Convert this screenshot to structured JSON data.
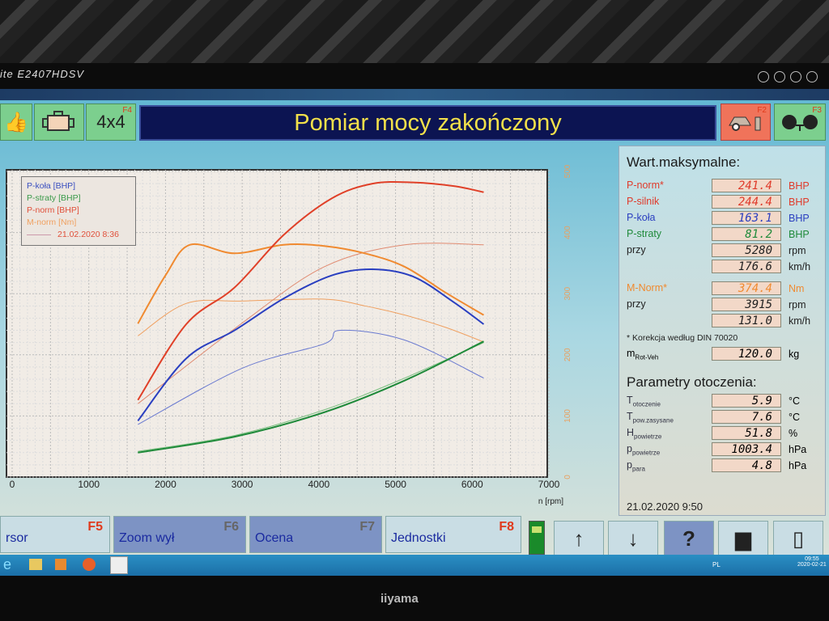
{
  "monitor": {
    "model": "ite E2407HDSV",
    "brand": "iiyama"
  },
  "toolbar": {
    "left_buttons": [
      {
        "icon": "thumbs-up-icon"
      },
      {
        "icon": "engine-icon"
      },
      {
        "label": "4x4",
        "fkey": "F4"
      }
    ],
    "title": "Pomiar mocy zakończony",
    "right_buttons": [
      {
        "icon": "car-lift-icon",
        "fkey": "F2",
        "color": "#f0735a"
      },
      {
        "icon": "axle-icon",
        "fkey": "F3",
        "color": "#7ccf8e"
      }
    ]
  },
  "chart_data": {
    "type": "line",
    "x_label": "n [rpm]",
    "x_ticks": [
      "0",
      "1000",
      "2000",
      "3000",
      "4000",
      "5000",
      "6000",
      "7000"
    ],
    "xlim": [
      0,
      7000
    ],
    "y_right_ticks": [
      "0",
      "100",
      "200",
      "300",
      "400",
      "500"
    ],
    "ylim_nm": [
      0,
      500
    ],
    "ylim_bhp": [
      0,
      250
    ],
    "grid": true,
    "legend_placement": "top-left",
    "legend": [
      {
        "label": "P-koła [BHP]",
        "color": "#3a4fc0"
      },
      {
        "label": "P-straty [BHP]",
        "color": "#3a9a4a"
      },
      {
        "label": "P-norm [BHP]",
        "color": "#e0503a"
      },
      {
        "label": "M-norm [Nm]",
        "color": "#f0a060"
      }
    ],
    "reference_run": "21.02.2020 8:36",
    "series": [
      {
        "name": "M-norm [Nm]",
        "unit": "Nm",
        "color": "#f08a30",
        "width": 2,
        "x": [
          1640,
          2000,
          2320,
          2900,
          3540,
          4070,
          4600,
          5120,
          5650,
          6150
        ],
        "values": [
          251,
          330,
          380,
          366,
          380,
          378,
          366,
          344,
          302,
          265
        ]
      },
      {
        "name": "P-norm [BHP]",
        "unit": "BHP",
        "color": "#e04028",
        "width": 2,
        "x": [
          1640,
          2270,
          2900,
          3540,
          4170,
          4700,
          5230,
          5760,
          6150
        ],
        "values": [
          63,
          125,
          155,
          198,
          228,
          240,
          241,
          238,
          233
        ]
      },
      {
        "name": "P-koła [BHP]",
        "unit": "BHP",
        "color": "#2a3fc0",
        "width": 2,
        "x": [
          1640,
          2270,
          2900,
          3540,
          4170,
          4700,
          5230,
          5760,
          6150
        ],
        "values": [
          46,
          97,
          120,
          146,
          165,
          170,
          164,
          143,
          125
        ]
      },
      {
        "name": "P-straty [BHP]",
        "unit": "BHP",
        "color": "#1f8a3a",
        "width": 2,
        "x": [
          1640,
          2900,
          4070,
          5120,
          6150
        ],
        "values": [
          20,
          33,
          53,
          79,
          111
        ]
      },
      {
        "name": "M-norm [Nm] 21.02.2020 8:36",
        "unit": "Nm",
        "color": "#f0a060",
        "width": 1,
        "x": [
          1640,
          2270,
          3000,
          4070,
          4600,
          5120,
          5650,
          6150
        ],
        "values": [
          231,
          284,
          288,
          291,
          280,
          265,
          245,
          221
        ]
      },
      {
        "name": "P-koła [BHP] 21.02.2020 8:36",
        "unit": "BHP",
        "color": "#6a7ad0",
        "width": 1,
        "x": [
          1640,
          3000,
          4070,
          4280,
          5120,
          6150
        ],
        "values": [
          43,
          89,
          109,
          120,
          112,
          81
        ]
      },
      {
        "name": "P-norm [BHP] 21.02.2020 8:36",
        "unit": "BHP",
        "color": "#e08a70",
        "width": 1,
        "x": [
          1640,
          3000,
          4070,
          5120,
          6150
        ],
        "values": [
          60,
          126,
          172,
          190,
          190
        ]
      },
      {
        "name": "P-straty [BHP] 21.02.2020 8:36",
        "unit": "BHP",
        "color": "#7abf80",
        "width": 1,
        "x": [
          1640,
          2900,
          4070,
          5120,
          6150
        ],
        "values": [
          21,
          34,
          55,
          81,
          110
        ]
      }
    ]
  },
  "max_values": {
    "heading": "Wart.maksymalne:",
    "rows": [
      {
        "label": "P-norm*",
        "value": "241.4",
        "unit": "BHP",
        "color": "#e03a2a"
      },
      {
        "label": "P-silnik",
        "value": "244.4",
        "unit": "BHP",
        "color": "#e03a2a"
      },
      {
        "label": "P-koła",
        "value": "163.1",
        "unit": "BHP",
        "color": "#2a3fc0"
      },
      {
        "label": "P-straty",
        "value": "81.2",
        "unit": "BHP",
        "color": "#1f8a3a"
      },
      {
        "label": "przy",
        "value": "5280",
        "unit": "rpm",
        "color": "#222222"
      },
      {
        "label": "",
        "value": "176.6",
        "unit": "km/h",
        "color": "#222222"
      },
      {
        "label": "M-Norm*",
        "value": "374.4",
        "unit": "Nm",
        "color": "#f08a30"
      },
      {
        "label": "przy",
        "value": "3915",
        "unit": "rpm",
        "color": "#222222"
      },
      {
        "label": "",
        "value": "131.0",
        "unit": "km/h",
        "color": "#222222"
      }
    ],
    "note": "* Korekcja według DIN 70020",
    "mass": {
      "label": "m",
      "sub": "Rot-Veh",
      "value": "120.0",
      "unit": "kg"
    }
  },
  "ambient": {
    "heading": "Parametry otoczenia:",
    "rows": [
      {
        "label": "T",
        "sub": "otoczenie",
        "value": "5.9",
        "unit": "°C"
      },
      {
        "label": "T",
        "sub": "pow.zasysane",
        "value": "7.6",
        "unit": "°C"
      },
      {
        "label": "H",
        "sub": "powietrze",
        "value": "51.8",
        "unit": "%"
      },
      {
        "label": "p",
        "sub": "powietrze",
        "value": "1003.4",
        "unit": "hPa"
      },
      {
        "label": "p",
        "sub": "para",
        "value": "4.8",
        "unit": "hPa"
      }
    ],
    "timestamp": "21.02.2020  9:50"
  },
  "bottom_bar": {
    "buttons": [
      {
        "label": "rsor",
        "fkey": "F5",
        "bg": "#c9dde4",
        "fk_color": "#e03a1c"
      },
      {
        "label": "Zoom wył",
        "fkey": "F6",
        "bg": "#7d93c4",
        "fk_color": "#666666"
      },
      {
        "label": "Ocena",
        "fkey": "F7",
        "bg": "#7d93c4",
        "fk_color": "#666666"
      },
      {
        "label": "Jednostki",
        "fkey": "F8",
        "bg": "#c9dde4",
        "fk_color": "#e03a1c"
      }
    ],
    "icons": [
      {
        "name": "arrow-up-icon",
        "glyph": "↑"
      },
      {
        "name": "arrow-down-icon",
        "glyph": "↓"
      },
      {
        "name": "help-icon",
        "glyph": "?"
      },
      {
        "name": "printer-icon",
        "glyph": "▆"
      },
      {
        "name": "exit-door-icon",
        "glyph": "▯"
      }
    ]
  },
  "taskbar": {
    "lang": "PL",
    "time": "09:55",
    "date": "2020-02-21"
  }
}
